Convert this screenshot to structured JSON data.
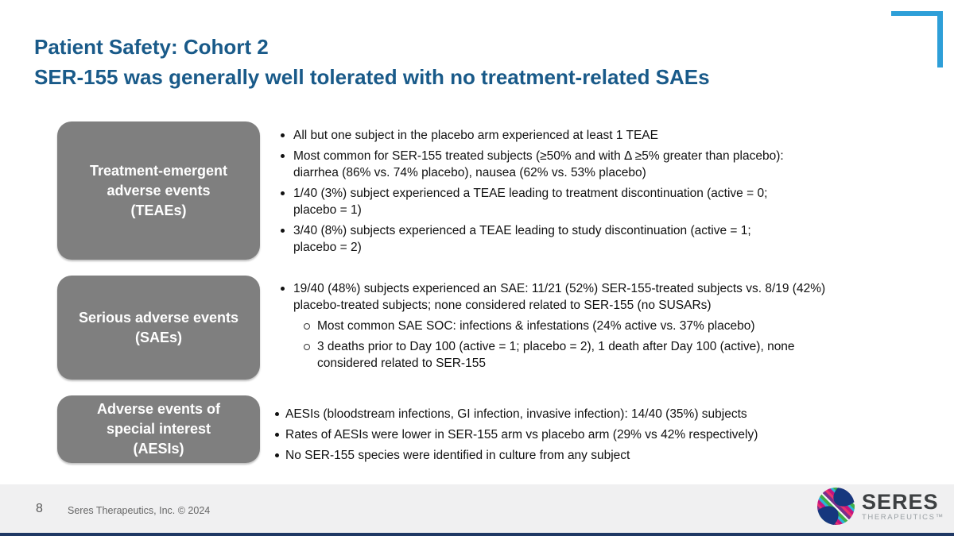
{
  "colors": {
    "title_blue": "#195a89",
    "bracket_blue": "#2e9fd8",
    "box_gray": "#7f7f7f",
    "footer_bg": "#f0f0f1",
    "bottom_strip_navy": "#1f3864"
  },
  "header": {
    "title_line1": "Patient Safety: Cohort 2",
    "title_line2": "SER-155 was generally well tolerated with no treatment-related SAEs"
  },
  "sections": [
    {
      "box_label": "Treatment-emergent\nadverse events\n(TEAEs)",
      "bullets": [
        {
          "level": 1,
          "text": "All but one subject in the placebo arm experienced at least 1 TEAE"
        },
        {
          "level": 1,
          "text": "Most common for SER-155 treated subjects (≥50% and with Δ ≥5% greater than placebo):\ndiarrhea (86% vs. 74% placebo), nausea (62% vs. 53% placebo)"
        },
        {
          "level": 1,
          "text": "1/40 (3%) subject experienced a TEAE leading to treatment discontinuation (active = 0;\nplacebo = 1)"
        },
        {
          "level": 1,
          "text": "3/40 (8%) subjects experienced a TEAE leading to study discontinuation (active = 1;\nplacebo = 2)"
        }
      ]
    },
    {
      "box_label": "Serious adverse events\n(SAEs)",
      "bullets": [
        {
          "level": 1,
          "text": "19/40 (48%) subjects experienced an SAE: 11/21 (52%) SER-155-treated subjects vs. 8/19 (42%)\nplacebo-treated subjects; none considered related to SER-155 (no SUSARs)"
        },
        {
          "level": 2,
          "text": "Most common SAE SOC: infections & infestations (24% active vs. 37% placebo)"
        },
        {
          "level": 2,
          "text": "3 deaths prior to Day 100 (active = 1; placebo = 2), 1 death after Day 100 (active), none\nconsidered related to SER-155"
        }
      ]
    },
    {
      "box_label": "Adverse events of\nspecial interest\n(AESIs)",
      "bullets": [
        {
          "level": 1,
          "text": "AESIs (bloodstream infections, GI infection, invasive infection): 14/40 (35%) subjects"
        },
        {
          "level": 1,
          "text": "Rates of AESIs were lower in SER-155 arm vs placebo arm (29% vs 42% respectively)"
        },
        {
          "level": 1,
          "text": "No SER-155 species were identified in culture from any subject"
        }
      ]
    }
  ],
  "footer": {
    "page_number": "8",
    "copyright": "Seres Therapeutics, Inc. © 2024",
    "logo_name": "SERES",
    "logo_sub": "THERAPEUTICS™"
  }
}
